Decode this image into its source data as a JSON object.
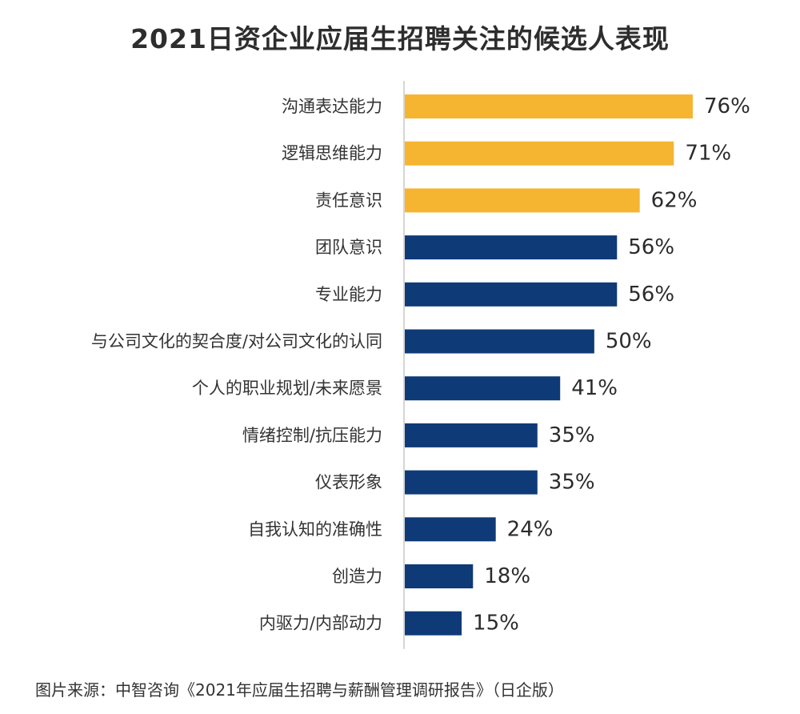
{
  "chart_data": {
    "type": "bar",
    "orientation": "horizontal",
    "title": "2021日资企业应届生招聘关注的候选人表现",
    "categories": [
      "沟通表达能力",
      "逻辑思维能力",
      "责任意识",
      "团队意识",
      "专业能力",
      "与公司文化的契合度/对公司文化的认同",
      "个人的职业规划/未来愿景",
      "情绪控制/抗压能力",
      "仪表形象",
      "自我认知的准确性",
      "创造力",
      "内驱力/内部动力"
    ],
    "values": [
      76,
      71,
      62,
      56,
      56,
      50,
      41,
      35,
      35,
      24,
      18,
      15
    ],
    "value_labels": [
      "76%",
      "71%",
      "62%",
      "56%",
      "56%",
      "50%",
      "41%",
      "35%",
      "35%",
      "24%",
      "18%",
      "15%"
    ],
    "highlight_count": 3,
    "highlight_color": "#F6B530",
    "bar_color": "#0F3A78",
    "axis_line_color": "#C8C8C8",
    "xlim": [
      0,
      76
    ],
    "grid": false,
    "legend": "none"
  },
  "source_note": "图片来源：中智咨询《2021年应届生招聘与薪酬管理调研报告》（日企版）"
}
